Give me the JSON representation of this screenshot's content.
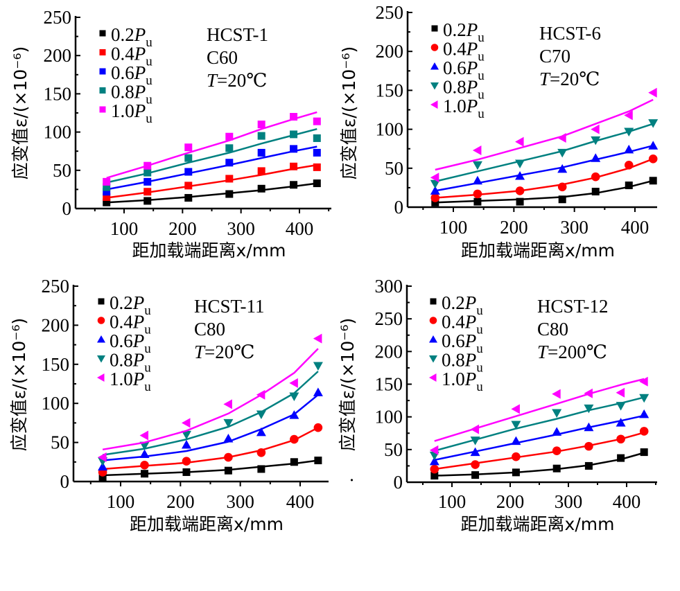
{
  "chart_data": [
    {
      "type": "scatter",
      "panel": "HCST-1",
      "annotations": [
        "HCST-1",
        "C60",
        "T=20℃"
      ],
      "xlabel": "距加载端距离x/mm",
      "ylabel": "应变值ε/(×10⁻⁶)",
      "xlim": [
        40,
        450
      ],
      "ylim": [
        0,
        250
      ],
      "xticks": [
        100,
        200,
        300,
        400
      ],
      "yticks": [
        0,
        50,
        100,
        150,
        200,
        250
      ],
      "legend_position": "top-left",
      "x": [
        70,
        140,
        210,
        280,
        335,
        390,
        430
      ],
      "series": [
        {
          "name": "0.2Pu",
          "marker": "square",
          "color": "#000000",
          "values": [
            8,
            10,
            14,
            19,
            26,
            31,
            33
          ],
          "fit": [
            8,
            11,
            15,
            20,
            24,
            29,
            33
          ]
        },
        {
          "name": "0.4Pu",
          "marker": "square",
          "color": "#ff0000",
          "values": [
            15,
            22,
            30,
            39,
            49,
            55,
            54
          ],
          "fit": [
            14,
            21,
            29,
            37,
            44,
            52,
            57
          ]
        },
        {
          "name": "0.6Pu",
          "marker": "square",
          "color": "#0000ff",
          "values": [
            22,
            35,
            48,
            60,
            73,
            78,
            73
          ],
          "fit": [
            25,
            35,
            46,
            57,
            66,
            75,
            81
          ]
        },
        {
          "name": "0.8Pu",
          "marker": "square",
          "color": "#008080",
          "values": [
            28,
            47,
            66,
            79,
            95,
            97,
            92
          ],
          "fit": [
            34,
            46,
            60,
            73,
            85,
            96,
            104
          ]
        },
        {
          "name": "1.0Pu",
          "marker": "square",
          "color": "#ff00ff",
          "values": [
            35,
            56,
            80,
            94,
            110,
            120,
            114
          ],
          "fit": [
            40,
            56,
            73,
            89,
            104,
            117,
            126
          ]
        }
      ]
    },
    {
      "type": "scatter",
      "panel": "HCST-6",
      "annotations": [
        "HCST-6",
        "C70",
        "T=20℃"
      ],
      "xlabel": "距加载端距离x/mm",
      "ylabel": "应变值ε/(×10⁻⁶)",
      "xlim": [
        25,
        450
      ],
      "ylim": [
        0,
        250
      ],
      "xticks": [
        100,
        200,
        300,
        400
      ],
      "yticks": [
        0,
        50,
        100,
        150,
        200,
        250
      ],
      "legend_position": "top-left",
      "x": [
        70,
        140,
        210,
        280,
        335,
        390,
        430
      ],
      "series": [
        {
          "name": "0.2Pu",
          "marker": "square",
          "color": "#000000",
          "values": [
            6,
            7,
            7,
            10,
            20,
            28,
            34
          ],
          "fit": [
            6,
            8,
            10,
            13,
            18,
            26,
            34
          ]
        },
        {
          "name": "0.4Pu",
          "marker": "circle",
          "color": "#ff0000",
          "values": [
            12,
            17,
            21,
            26,
            39,
            54,
            62
          ],
          "fit": [
            12,
            16,
            21,
            29,
            38,
            50,
            62
          ]
        },
        {
          "name": "0.6Pu",
          "marker": "triangle-up",
          "color": "#0000ff",
          "values": [
            21,
            34,
            40,
            49,
            63,
            74,
            79
          ],
          "fit": [
            21,
            31,
            41,
            51,
            61,
            71,
            79
          ]
        },
        {
          "name": "0.8Pu",
          "marker": "triangle-down",
          "color": "#008080",
          "values": [
            30,
            54,
            56,
            70,
            86,
            97,
            108
          ],
          "fit": [
            33,
            46,
            59,
            72,
            85,
            97,
            107
          ]
        },
        {
          "name": "1.0Pu",
          "marker": "triangle-left",
          "color": "#ff00ff",
          "values": [
            38,
            73,
            84,
            89,
            100,
            118,
            147
          ],
          "fit": [
            48,
            61,
            76,
            91,
            107,
            123,
            138
          ]
        }
      ]
    },
    {
      "type": "scatter",
      "panel": "HCST-11",
      "annotations": [
        "HCST-11",
        "C80",
        "T=20℃"
      ],
      "xlabel": "距加载端距离x/mm",
      "ylabel": "应变值ε/(×10⁻⁶)",
      "xlim": [
        25,
        455
      ],
      "ylim": [
        0,
        250
      ],
      "xticks": [
        100,
        200,
        300,
        400
      ],
      "yticks": [
        0,
        50,
        100,
        150,
        200,
        250
      ],
      "legend_position": "top-left",
      "x": [
        70,
        140,
        210,
        280,
        335,
        390,
        430
      ],
      "series": [
        {
          "name": "0.2Pu",
          "marker": "square",
          "color": "#000000",
          "values": [
            5,
            10,
            12,
            14,
            16,
            25,
            27
          ],
          "fit": [
            8,
            10,
            12,
            15,
            19,
            23,
            27
          ]
        },
        {
          "name": "0.4Pu",
          "marker": "circle",
          "color": "#ff0000",
          "values": [
            12,
            21,
            26,
            31,
            37,
            54,
            69
          ],
          "fit": [
            16,
            20,
            24,
            31,
            40,
            53,
            69
          ]
        },
        {
          "name": "0.6Pu",
          "marker": "triangle-up",
          "color": "#0000ff",
          "values": [
            19,
            35,
            47,
            55,
            63,
            85,
            114
          ],
          "fit": [
            27,
            32,
            39,
            51,
            67,
            86,
            111
          ]
        },
        {
          "name": "0.8Pu",
          "marker": "triangle-down",
          "color": "#008080",
          "values": [
            26,
            46,
            60,
            75,
            86,
            109,
            148
          ],
          "fit": [
            34,
            42,
            54,
            70,
            89,
            113,
            141
          ]
        },
        {
          "name": "1.0Pu",
          "marker": "triangle-left",
          "color": "#ff00ff",
          "values": [
            31,
            59,
            75,
            99,
            111,
            126,
            183
          ],
          "fit": [
            41,
            50,
            65,
            87,
            111,
            139,
            170
          ]
        }
      ]
    },
    {
      "type": "scatter",
      "panel": "HCST-12",
      "annotations": [
        "HCST-12",
        "C80",
        "T=200℃"
      ],
      "xlabel": "距加载端距离x/mm",
      "ylabel": "应变值ε/(×10⁻⁶)",
      "xlim": [
        25,
        460
      ],
      "ylim": [
        0,
        300
      ],
      "xticks": [
        100,
        200,
        300,
        400
      ],
      "yticks": [
        0,
        50,
        100,
        150,
        200,
        250,
        300
      ],
      "legend_position": "top-left",
      "x": [
        70,
        140,
        210,
        280,
        335,
        390,
        430
      ],
      "series": [
        {
          "name": "0.2Pu",
          "marker": "square",
          "color": "#000000",
          "values": [
            10,
            11,
            15,
            21,
            25,
            37,
            46
          ],
          "fit": [
            10,
            12,
            15,
            20,
            26,
            35,
            45
          ]
        },
        {
          "name": "0.4Pu",
          "marker": "circle",
          "color": "#ff0000",
          "values": [
            20,
            27,
            39,
            48,
            55,
            66,
            78
          ],
          "fit": [
            20,
            29,
            38,
            47,
            56,
            66,
            76
          ]
        },
        {
          "name": "0.6Pu",
          "marker": "triangle-up",
          "color": "#0000ff",
          "values": [
            32,
            46,
            63,
            77,
            84,
            91,
            104
          ],
          "fit": [
            34,
            47,
            60,
            73,
            84,
            94,
            102
          ]
        },
        {
          "name": "0.8Pu",
          "marker": "triangle-down",
          "color": "#008080",
          "values": [
            41,
            64,
            88,
            106,
            113,
            117,
            129
          ],
          "fit": [
            48,
            65,
            82,
            97,
            110,
            121,
            130
          ]
        },
        {
          "name": "1.0Pu",
          "marker": "triangle-left",
          "color": "#ff00ff",
          "values": [
            49,
            81,
            112,
            135,
            136,
            137,
            154
          ],
          "fit": [
            63,
            82,
            101,
            120,
            135,
            149,
            158
          ]
        }
      ]
    }
  ],
  "legend_labels": {
    "coefs": [
      "0.2",
      "0.4",
      "0.6",
      "0.8",
      "1.0"
    ],
    "symbol": "P",
    "subscript": "u"
  },
  "stray_mark": "·"
}
